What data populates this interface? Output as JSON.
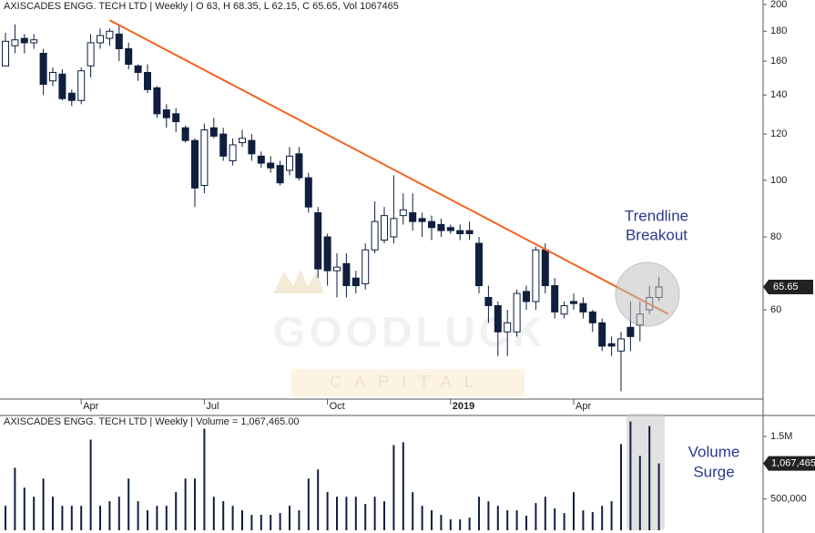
{
  "chart_data": {
    "type": "candlestick",
    "title": "AXISCADES ENGG. TECH LTD | Weekly | O 63, H 68.35, L 62.15, C 65.65, Vol 1067465",
    "volume_title": "AXISCADES ENGG. TECH LTD | Weekly | Volume = 1,067,465.00",
    "annotations": [
      [
        "Trendline",
        "Breakout"
      ],
      [
        "Volume",
        "Surge"
      ]
    ],
    "watermark": [
      "GOODLUCK",
      "CAPITAL"
    ],
    "log_scale": true,
    "up_color": "#ffffff",
    "down_color": "#0f1f3d",
    "trendline_color": "#f26522",
    "volume_color": "#0f1f3d",
    "ylim": [
      42.2,
      203.6
    ],
    "yticks": [
      60,
      80,
      100,
      120,
      140,
      160,
      180,
      200
    ],
    "volume_ylim": [
      0,
      1820000
    ],
    "volume_yticks": [
      {
        "value": 500000,
        "label": "500,000"
      },
      {
        "value": 1500000,
        "label": "1.5M"
      }
    ],
    "categories": [
      null,
      null,
      null,
      null,
      null,
      null,
      null,
      null,
      "Apr",
      null,
      null,
      null,
      null,
      null,
      null,
      null,
      null,
      null,
      null,
      null,
      null,
      "Jul",
      null,
      null,
      null,
      null,
      null,
      null,
      null,
      null,
      null,
      null,
      null,
      null,
      "Oct",
      null,
      null,
      null,
      null,
      null,
      null,
      null,
      null,
      null,
      null,
      null,
      null,
      "2019",
      null,
      null,
      null,
      null,
      null,
      null,
      null,
      null,
      null,
      null,
      null,
      null,
      "Apr",
      null,
      null,
      null,
      null,
      null,
      null,
      null,
      null,
      null
    ],
    "candles": [
      {
        "o": 157,
        "h": 179,
        "l": 157,
        "c": 173
      },
      {
        "o": 170,
        "h": 185,
        "l": 165,
        "c": 174
      },
      {
        "o": 175,
        "h": 178,
        "l": 165,
        "c": 172
      },
      {
        "o": 172,
        "h": 178,
        "l": 168,
        "c": 174
      },
      {
        "o": 165,
        "h": 168,
        "l": 140,
        "c": 146
      },
      {
        "o": 148,
        "h": 156,
        "l": 145,
        "c": 153
      },
      {
        "o": 152,
        "h": 155,
        "l": 137,
        "c": 138
      },
      {
        "o": 141,
        "h": 143,
        "l": 134,
        "c": 137
      },
      {
        "o": 137,
        "h": 156,
        "l": 135,
        "c": 154
      },
      {
        "o": 157,
        "h": 178,
        "l": 150,
        "c": 172
      },
      {
        "o": 172,
        "h": 182,
        "l": 168,
        "c": 177
      },
      {
        "o": 175,
        "h": 182,
        "l": 170,
        "c": 180
      },
      {
        "o": 178,
        "h": 185,
        "l": 160,
        "c": 168
      },
      {
        "o": 168,
        "h": 172,
        "l": 155,
        "c": 158
      },
      {
        "o": 157,
        "h": 158,
        "l": 148,
        "c": 153
      },
      {
        "o": 153,
        "h": 158,
        "l": 141,
        "c": 143
      },
      {
        "o": 144,
        "h": 145,
        "l": 128,
        "c": 130
      },
      {
        "o": 132,
        "h": 135,
        "l": 123,
        "c": 128
      },
      {
        "o": 130,
        "h": 133,
        "l": 121,
        "c": 126
      },
      {
        "o": 123,
        "h": 124,
        "l": 116,
        "c": 117
      },
      {
        "o": 117,
        "h": 118,
        "l": 90,
        "c": 97
      },
      {
        "o": 98,
        "h": 125,
        "l": 95,
        "c": 122
      },
      {
        "o": 123,
        "h": 128,
        "l": 118,
        "c": 119
      },
      {
        "o": 120,
        "h": 123,
        "l": 108,
        "c": 110
      },
      {
        "o": 108,
        "h": 118,
        "l": 106,
        "c": 115
      },
      {
        "o": 116,
        "h": 122,
        "l": 114,
        "c": 118
      },
      {
        "o": 117,
        "h": 120,
        "l": 108,
        "c": 111
      },
      {
        "o": 110,
        "h": 112,
        "l": 105,
        "c": 107
      },
      {
        "o": 107,
        "h": 110,
        "l": 103,
        "c": 105
      },
      {
        "o": 106,
        "h": 108,
        "l": 98,
        "c": 99
      },
      {
        "o": 104,
        "h": 114,
        "l": 102,
        "c": 110
      },
      {
        "o": 111,
        "h": 114,
        "l": 100,
        "c": 101
      },
      {
        "o": 101,
        "h": 103,
        "l": 88,
        "c": 90
      },
      {
        "o": 88,
        "h": 90,
        "l": 68,
        "c": 70.5
      },
      {
        "o": 80,
        "h": 81,
        "l": 66,
        "c": 70
      },
      {
        "o": 70,
        "h": 75,
        "l": 63,
        "c": 71
      },
      {
        "o": 72,
        "h": 75,
        "l": 63,
        "c": 66
      },
      {
        "o": 68,
        "h": 70,
        "l": 64,
        "c": 66
      },
      {
        "o": 66.5,
        "h": 78,
        "l": 65,
        "c": 76
      },
      {
        "o": 76,
        "h": 92,
        "l": 75,
        "c": 85
      },
      {
        "o": 79,
        "h": 90,
        "l": 78,
        "c": 87
      },
      {
        "o": 80,
        "h": 102,
        "l": 78,
        "c": 86
      },
      {
        "o": 87,
        "h": 95,
        "l": 84,
        "c": 89
      },
      {
        "o": 88,
        "h": 95,
        "l": 82,
        "c": 85
      },
      {
        "o": 86,
        "h": 88,
        "l": 80,
        "c": 85
      },
      {
        "o": 85,
        "h": 87,
        "l": 79,
        "c": 83
      },
      {
        "o": 84,
        "h": 86,
        "l": 80,
        "c": 82
      },
      {
        "o": 83,
        "h": 84,
        "l": 81,
        "c": 82
      },
      {
        "o": 82,
        "h": 84,
        "l": 79,
        "c": 81
      },
      {
        "o": 82,
        "h": 85,
        "l": 79,
        "c": 81
      },
      {
        "o": 78,
        "h": 80,
        "l": 64,
        "c": 66
      },
      {
        "o": 63,
        "h": 66,
        "l": 57,
        "c": 61
      },
      {
        "o": 61,
        "h": 62,
        "l": 50,
        "c": 55
      },
      {
        "o": 55,
        "h": 60,
        "l": 50,
        "c": 57
      },
      {
        "o": 55,
        "h": 65,
        "l": 54,
        "c": 64
      },
      {
        "o": 64.5,
        "h": 66,
        "l": 60,
        "c": 62
      },
      {
        "o": 62,
        "h": 77,
        "l": 60,
        "c": 76
      },
      {
        "o": 76,
        "h": 78,
        "l": 64,
        "c": 66
      },
      {
        "o": 66,
        "h": 68,
        "l": 58,
        "c": 59.5
      },
      {
        "o": 59,
        "h": 62,
        "l": 58,
        "c": 61
      },
      {
        "o": 62,
        "h": 64,
        "l": 60,
        "c": 61.5
      },
      {
        "o": 61.5,
        "h": 63,
        "l": 58,
        "c": 59.5
      },
      {
        "o": 59.5,
        "h": 60,
        "l": 55,
        "c": 57
      },
      {
        "o": 57,
        "h": 58,
        "l": 51,
        "c": 52
      },
      {
        "o": 52.5,
        "h": 54,
        "l": 50,
        "c": 52
      },
      {
        "o": 51,
        "h": 55,
        "l": 43.5,
        "c": 53.5
      },
      {
        "o": 56,
        "h": 62,
        "l": 51,
        "c": 54
      },
      {
        "o": 56.5,
        "h": 62,
        "l": 53,
        "c": 59
      },
      {
        "o": 60,
        "h": 66,
        "l": 59,
        "c": 63
      },
      {
        "o": 63,
        "h": 68.35,
        "l": 62.15,
        "c": 65.65
      }
    ],
    "trendline": {
      "from": [
        11,
        188
      ],
      "to": [
        70,
        59
      ]
    },
    "volume": [
      391000,
      1000000,
      681000,
      536000,
      826000,
      536000,
      391000,
      391000,
      391000,
      1449000,
      391000,
      464000,
      536000,
      826000,
      464000,
      319000,
      391000,
      391000,
      609000,
      826000,
      826000,
      1623000,
      536000,
      464000,
      391000,
      319000,
      246000,
      246000,
      246000,
      275000,
      391000,
      319000,
      826000,
      971000,
      609000,
      536000,
      536000,
      536000,
      420000,
      536000,
      464000,
      1362000,
      1406000,
      609000,
      391000,
      319000,
      246000,
      174000,
      174000,
      203000,
      536000,
      464000,
      391000,
      319000,
      319000,
      232000,
      435000,
      536000,
      348000,
      275000,
      609000,
      319000,
      290000,
      391000,
      464000,
      1377000,
      1739000,
      1188000,
      1667000,
      1067465
    ],
    "volume_value_labels": [
      null,
      null,
      null,
      null,
      null,
      null,
      null,
      null,
      null,
      null,
      null,
      null,
      null,
      null,
      null,
      null,
      null,
      null,
      null,
      null,
      null,
      null,
      null,
      null,
      null,
      null,
      null,
      null,
      null,
      null,
      null,
      null,
      null,
      null,
      null,
      null,
      null,
      null,
      null,
      null,
      null,
      null,
      null,
      null,
      null,
      null,
      null,
      null,
      null,
      null,
      null,
      null,
      null,
      null,
      null,
      null,
      null,
      null,
      null,
      null,
      null,
      null,
      null,
      null,
      null,
      null,
      null,
      null,
      null,
      "1,067,465"
    ]
  }
}
